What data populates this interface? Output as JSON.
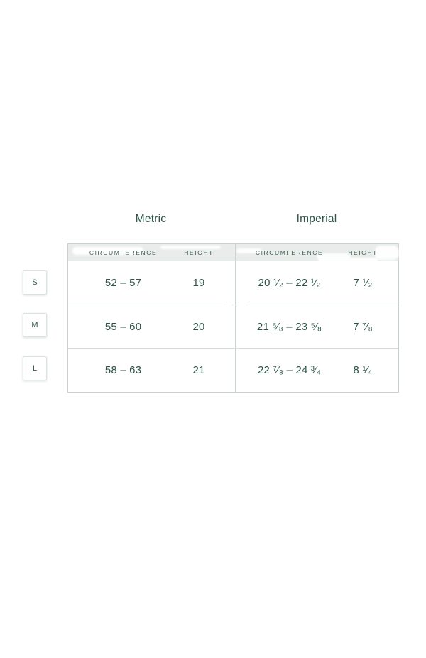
{
  "colors": {
    "text_green": "#2d5547",
    "header_text_green": "#3f6051",
    "table_border": "#c6d2cb",
    "row_divider": "#d4dfd9",
    "center_divider": "#c8d5ce",
    "header_background": "#e9ecea",
    "badge_border": "#dce3df",
    "page_background": "#ffffff"
  },
  "section_titles": {
    "metric": "Metric",
    "imperial": "Imperial"
  },
  "size_chart": {
    "column_headers": {
      "circumference": "CIRCUMFERENCE",
      "height": "HEIGHT"
    },
    "rows": [
      {
        "size": "S",
        "metric": {
          "circumference": "52 – 57",
          "height": "19"
        },
        "imperial": {
          "circumference": "20 ¹⁄₂ – 22 ¹⁄₂",
          "height": "7 ¹⁄₂"
        }
      },
      {
        "size": "M",
        "metric": {
          "circumference": "55 – 60",
          "height": "20"
        },
        "imperial": {
          "circumference": "21 ⁵⁄₈ – 23 ⁵⁄₈",
          "height": "7 ⁷⁄₈"
        }
      },
      {
        "size": "L",
        "metric": {
          "circumference": "58 – 63",
          "height": "21"
        },
        "imperial": {
          "circumference": "22 ⁷⁄₈ – 24 ³⁄₄",
          "height": "8 ¹⁄₄"
        }
      }
    ]
  }
}
